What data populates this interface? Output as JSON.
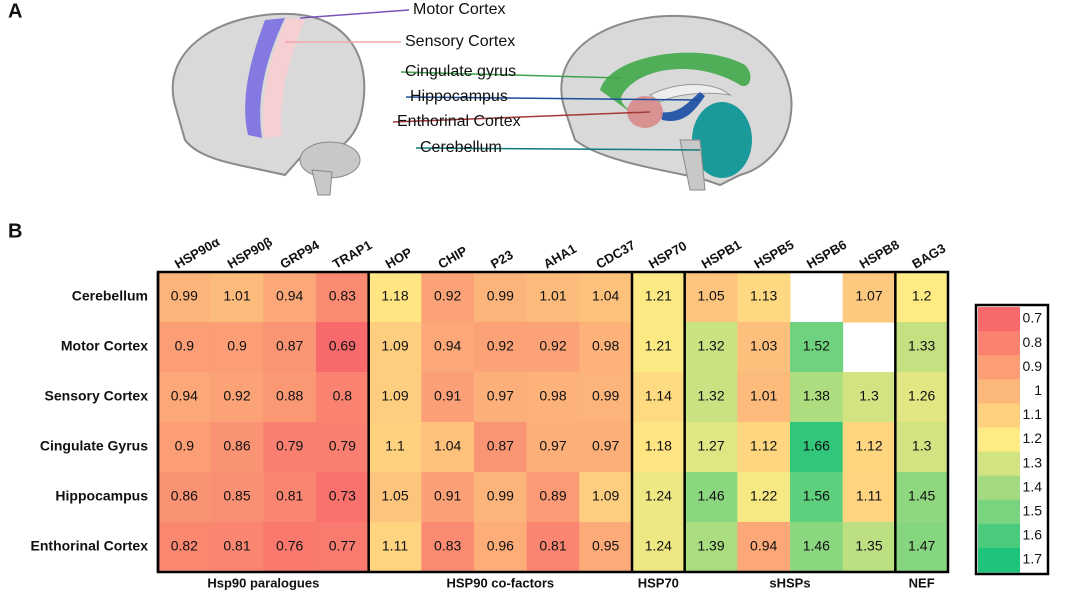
{
  "panels": [
    {
      "label": "A",
      "annotations": [
        {
          "text": "Motor Cortex",
          "color": "#7b52b8"
        },
        {
          "text": "Sensory Cortex",
          "color": "#f2a6ae"
        },
        {
          "text": "Cingulate gyrus",
          "color": "#3fa34d"
        },
        {
          "text": "Hippocampus",
          "color": "#1f4e9a"
        },
        {
          "text": "Enthorinal Cortex",
          "color": "#a33a3a"
        },
        {
          "text": "Cerebellum",
          "color": "#137a7a"
        }
      ]
    },
    {
      "label": "B"
    }
  ],
  "chart_data": {
    "type": "heatmap",
    "rows": [
      "Cerebellum",
      "Motor Cortex",
      "Sensory Cortex",
      "Cingulate Gyrus",
      "Hippocampus",
      "Enthorinal Cortex"
    ],
    "column_groups": [
      {
        "name": "Hsp90 paralogues",
        "columns": [
          "HSP90α",
          "HSP90β",
          "GRP94",
          "TRAP1"
        ]
      },
      {
        "name": "HSP90 co-factors",
        "columns": [
          "HOP",
          "CHIP",
          "P23",
          "AHA1",
          "CDC37"
        ]
      },
      {
        "name": "HSP70",
        "columns": [
          "HSP70"
        ]
      },
      {
        "name": "sHSPs",
        "columns": [
          "HSPB1",
          "HSPB5",
          "HSPB6",
          "HSPB8"
        ]
      },
      {
        "name": "NEF",
        "columns": [
          "BAG3"
        ]
      }
    ],
    "values": [
      [
        0.99,
        1.01,
        0.94,
        0.83,
        1.18,
        0.92,
        0.99,
        1.01,
        1.04,
        1.21,
        1.05,
        1.13,
        null,
        1.07,
        1.2
      ],
      [
        0.9,
        0.9,
        0.87,
        0.69,
        1.09,
        0.94,
        0.92,
        0.92,
        0.98,
        1.21,
        1.32,
        1.03,
        1.52,
        null,
        1.33
      ],
      [
        0.94,
        0.92,
        0.88,
        0.8,
        1.09,
        0.91,
        0.97,
        0.98,
        0.99,
        1.14,
        1.32,
        1.01,
        1.38,
        1.3,
        1.26
      ],
      [
        0.9,
        0.86,
        0.79,
        0.79,
        1.1,
        1.04,
        0.87,
        0.97,
        0.97,
        1.18,
        1.27,
        1.12,
        1.66,
        1.12,
        1.3
      ],
      [
        0.86,
        0.85,
        0.81,
        0.73,
        1.05,
        0.91,
        0.99,
        0.89,
        1.09,
        1.24,
        1.46,
        1.22,
        1.56,
        1.11,
        1.45
      ],
      [
        0.82,
        0.81,
        0.76,
        0.77,
        1.11,
        0.83,
        0.96,
        0.81,
        0.95,
        1.24,
        1.39,
        0.94,
        1.46,
        1.35,
        1.47
      ]
    ],
    "colorscale": [
      {
        "value": 0.7,
        "color": "#f8696b"
      },
      {
        "value": 1.2,
        "color": "#ffeb84"
      },
      {
        "value": 1.7,
        "color": "#1ec47a"
      }
    ],
    "colorbar_ticks": [
      0.7,
      0.8,
      0.9,
      1,
      1.1,
      1.2,
      1.3,
      1.4,
      1.5,
      1.6,
      1.7
    ]
  }
}
